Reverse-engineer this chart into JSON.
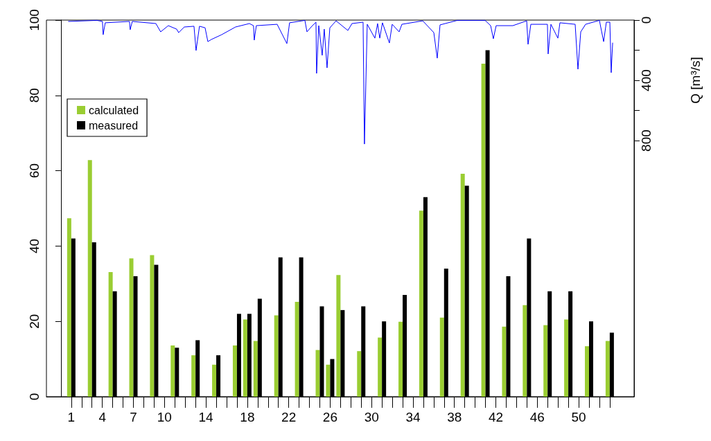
{
  "chart_data": {
    "type": "bar",
    "x": [
      1,
      3,
      5,
      7,
      9,
      11,
      13,
      15,
      17,
      18,
      19,
      21,
      23,
      25,
      26,
      27,
      29,
      31,
      33,
      35,
      37,
      39,
      41,
      43,
      45,
      47,
      49,
      51,
      53
    ],
    "series": [
      {
        "name": "calculated",
        "color": "#9acd32",
        "values": [
          47.4,
          62.8,
          33.1,
          36.7,
          37.6,
          13.6,
          11.0,
          8.5,
          13.6,
          20.5,
          14.8,
          21.6,
          25.2,
          12.4,
          8.5,
          32.3,
          12.1,
          15.7,
          19.9,
          49.4,
          21.0,
          59.2,
          88.4,
          18.6,
          24.3,
          19.0,
          20.5,
          13.4,
          14.8
        ]
      },
      {
        "name": "measured",
        "color": "#000000",
        "values": [
          42,
          41,
          28,
          32,
          35,
          13,
          15,
          11,
          22,
          22,
          26,
          37,
          37,
          24,
          10,
          23,
          24,
          20,
          27,
          53,
          34,
          56,
          92,
          32,
          42,
          28,
          28,
          20,
          17
        ]
      },
      {
        "type": "line",
        "axis": "y2",
        "color": "#0000ff",
        "x": [
          0.73,
          3.48,
          4.01,
          4.08,
          4.28,
          6.62,
          6.69,
          6.89,
          9.17,
          9.63,
          10.37,
          11.17,
          11.37,
          11.91,
          12.85,
          13.05,
          13.38,
          13.92,
          14.19,
          14.52,
          15.52,
          16.86,
          18.2,
          18.6,
          18.67,
          18.87,
          20.88,
          21.82,
          22.08,
          23.56,
          23.76,
          24.23,
          24.63,
          24.69,
          24.9,
          25.23,
          25.43,
          25.7,
          25.97,
          26.57,
          27.71,
          28.11,
          29.18,
          29.31,
          29.58,
          30.32,
          30.58,
          30.79,
          31.05,
          31.72,
          31.99,
          32.66,
          32.93,
          34.94,
          36.01,
          36.34,
          36.61,
          38.28,
          40.96,
          41.5,
          41.76,
          42.03,
          43.64,
          44.98,
          45.11,
          45.38,
          46.98,
          47.05,
          47.32,
          47.99,
          48.19,
          49.66,
          49.93,
          50.2,
          50.67,
          52.0,
          52.41,
          52.67,
          53.01,
          53.14,
          53.28
        ],
        "values": [
          9,
          2,
          9,
          97,
          18,
          9,
          64,
          9,
          23,
          78,
          37,
          60,
          83,
          46,
          41,
          202,
          41,
          51,
          143,
          129,
          97,
          46,
          23,
          37,
          133,
          37,
          28,
          156,
          18,
          2,
          78,
          41,
          14,
          354,
          37,
          234,
          60,
          317,
          51,
          5,
          69,
          23,
          14,
          823,
          28,
          120,
          23,
          120,
          18,
          152,
          28,
          78,
          28,
          5,
          83,
          253,
          32,
          2,
          2,
          37,
          124,
          37,
          37,
          5,
          161,
          28,
          28,
          225,
          28,
          120,
          18,
          28,
          326,
          78,
          28,
          2,
          143,
          14,
          14,
          349,
          152
        ]
      }
    ],
    "xlim": [
      -1.4,
      55.35
    ],
    "xticks": [
      1,
      {
        "value": 2,
        "label": null
      },
      {
        "value": 3,
        "label": null
      },
      4,
      {
        "value": 5,
        "label": null
      },
      {
        "value": 6,
        "label": null
      },
      7,
      {
        "value": 8,
        "label": null
      },
      {
        "value": 9,
        "label": null
      },
      10,
      {
        "value": 11,
        "label": null
      },
      {
        "value": 12,
        "label": null
      },
      {
        "value": 13,
        "label": null
      },
      14,
      {
        "value": 15,
        "label": null
      },
      {
        "value": 16,
        "label": null
      },
      {
        "value": 17,
        "label": null
      },
      18,
      {
        "value": 19,
        "label": null
      },
      {
        "value": 20,
        "label": null
      },
      {
        "value": 21,
        "label": null
      },
      22,
      {
        "value": 23,
        "label": null
      },
      {
        "value": 24,
        "label": null
      },
      {
        "value": 25,
        "label": null
      },
      26,
      {
        "value": 27,
        "label": null
      },
      {
        "value": 28,
        "label": null
      },
      {
        "value": 29,
        "label": null
      },
      30,
      {
        "value": 31,
        "label": null
      },
      {
        "value": 32,
        "label": null
      },
      {
        "value": 33,
        "label": null
      },
      34,
      {
        "value": 35,
        "label": null
      },
      {
        "value": 36,
        "label": null
      },
      {
        "value": 37,
        "label": null
      },
      38,
      {
        "value": 39,
        "label": null
      },
      {
        "value": 40,
        "label": null
      },
      {
        "value": 41,
        "label": null
      },
      42,
      {
        "value": 43,
        "label": null
      },
      {
        "value": 44,
        "label": null
      },
      {
        "value": 45,
        "label": null
      },
      46,
      {
        "value": 47,
        "label": null
      },
      {
        "value": 48,
        "label": null
      },
      {
        "value": 49,
        "label": null
      },
      50,
      {
        "value": 51,
        "label": null
      },
      {
        "value": 52,
        "label": null
      },
      {
        "value": 53,
        "label": null
      }
    ],
    "ylim": [
      0,
      100
    ],
    "yticks": [
      0,
      20,
      40,
      60,
      80,
      100
    ],
    "y2lim": [
      2500,
      0
    ],
    "y2ticks": [
      0,
      {
        "value": 200,
        "label": null
      },
      400,
      {
        "value": 600,
        "label": null
      },
      800
    ],
    "y2label": "Q [m³/s]",
    "legend": "top left",
    "grid": false,
    "marker": "none",
    "line_style": "solid"
  }
}
